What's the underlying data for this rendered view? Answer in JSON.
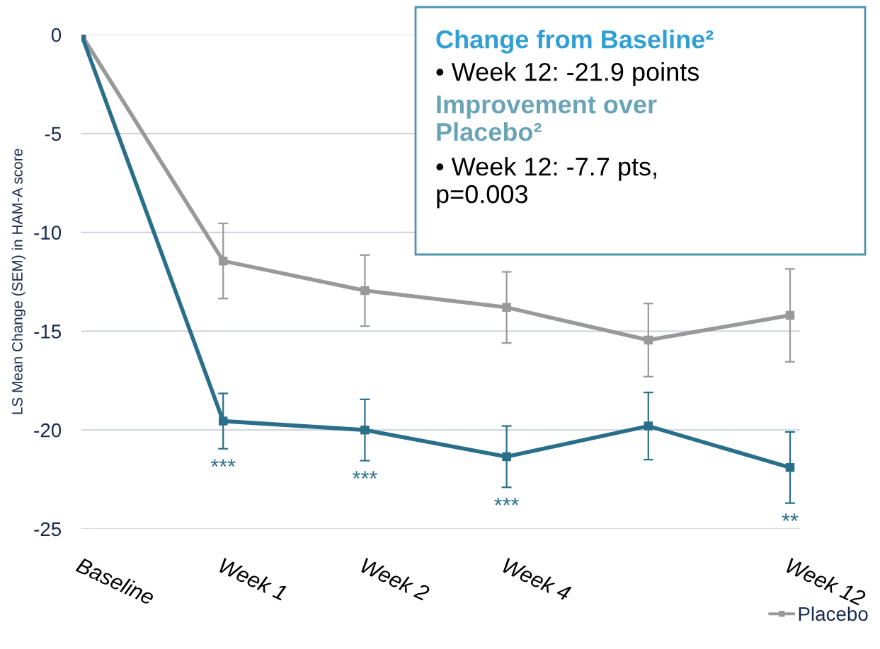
{
  "chart_data": {
    "type": "line",
    "ylabel": "LS Mean Change (SEM) in HAM-A score",
    "categories": [
      "Baseline",
      "Week 1",
      "Week 2",
      "Week 4",
      null,
      "Week 12"
    ],
    "ylim": [
      -25,
      0
    ],
    "yticks": [
      -25,
      -20,
      -15,
      -10,
      -5,
      0
    ],
    "series": [
      {
        "name": "Placebo",
        "color": "#999999",
        "values": [
          0,
          -11.45,
          -12.95,
          -13.8,
          -15.45,
          -14.2
        ],
        "errors": [
          null,
          1.9,
          1.8,
          1.8,
          1.85,
          2.35
        ]
      },
      {
        "color": "#2a6f8a",
        "values": [
          0,
          -19.55,
          -20.0,
          -21.35,
          -19.8,
          -21.9
        ],
        "errors": [
          null,
          1.4,
          1.55,
          1.55,
          1.7,
          1.8
        ]
      }
    ],
    "annotations": [
      {
        "text": "***",
        "x": "Week 1",
        "y": -19.55
      },
      {
        "text": "***",
        "x": "Week 2",
        "y": -20.0
      },
      {
        "text": "***",
        "x": "Week 4",
        "y": -21.35
      },
      {
        "text": "**",
        "x": "Week 12",
        "y": -21.9
      },
      "Change from Baseline²",
      "• Week 12: -21.9 points",
      "Improvement over\nPlacebo²",
      "• Week 12: -7.7 pts,\np=0.003"
    ],
    "grid": "y",
    "legend": "bottom right",
    "marker": "square",
    "line_style": "solid"
  }
}
